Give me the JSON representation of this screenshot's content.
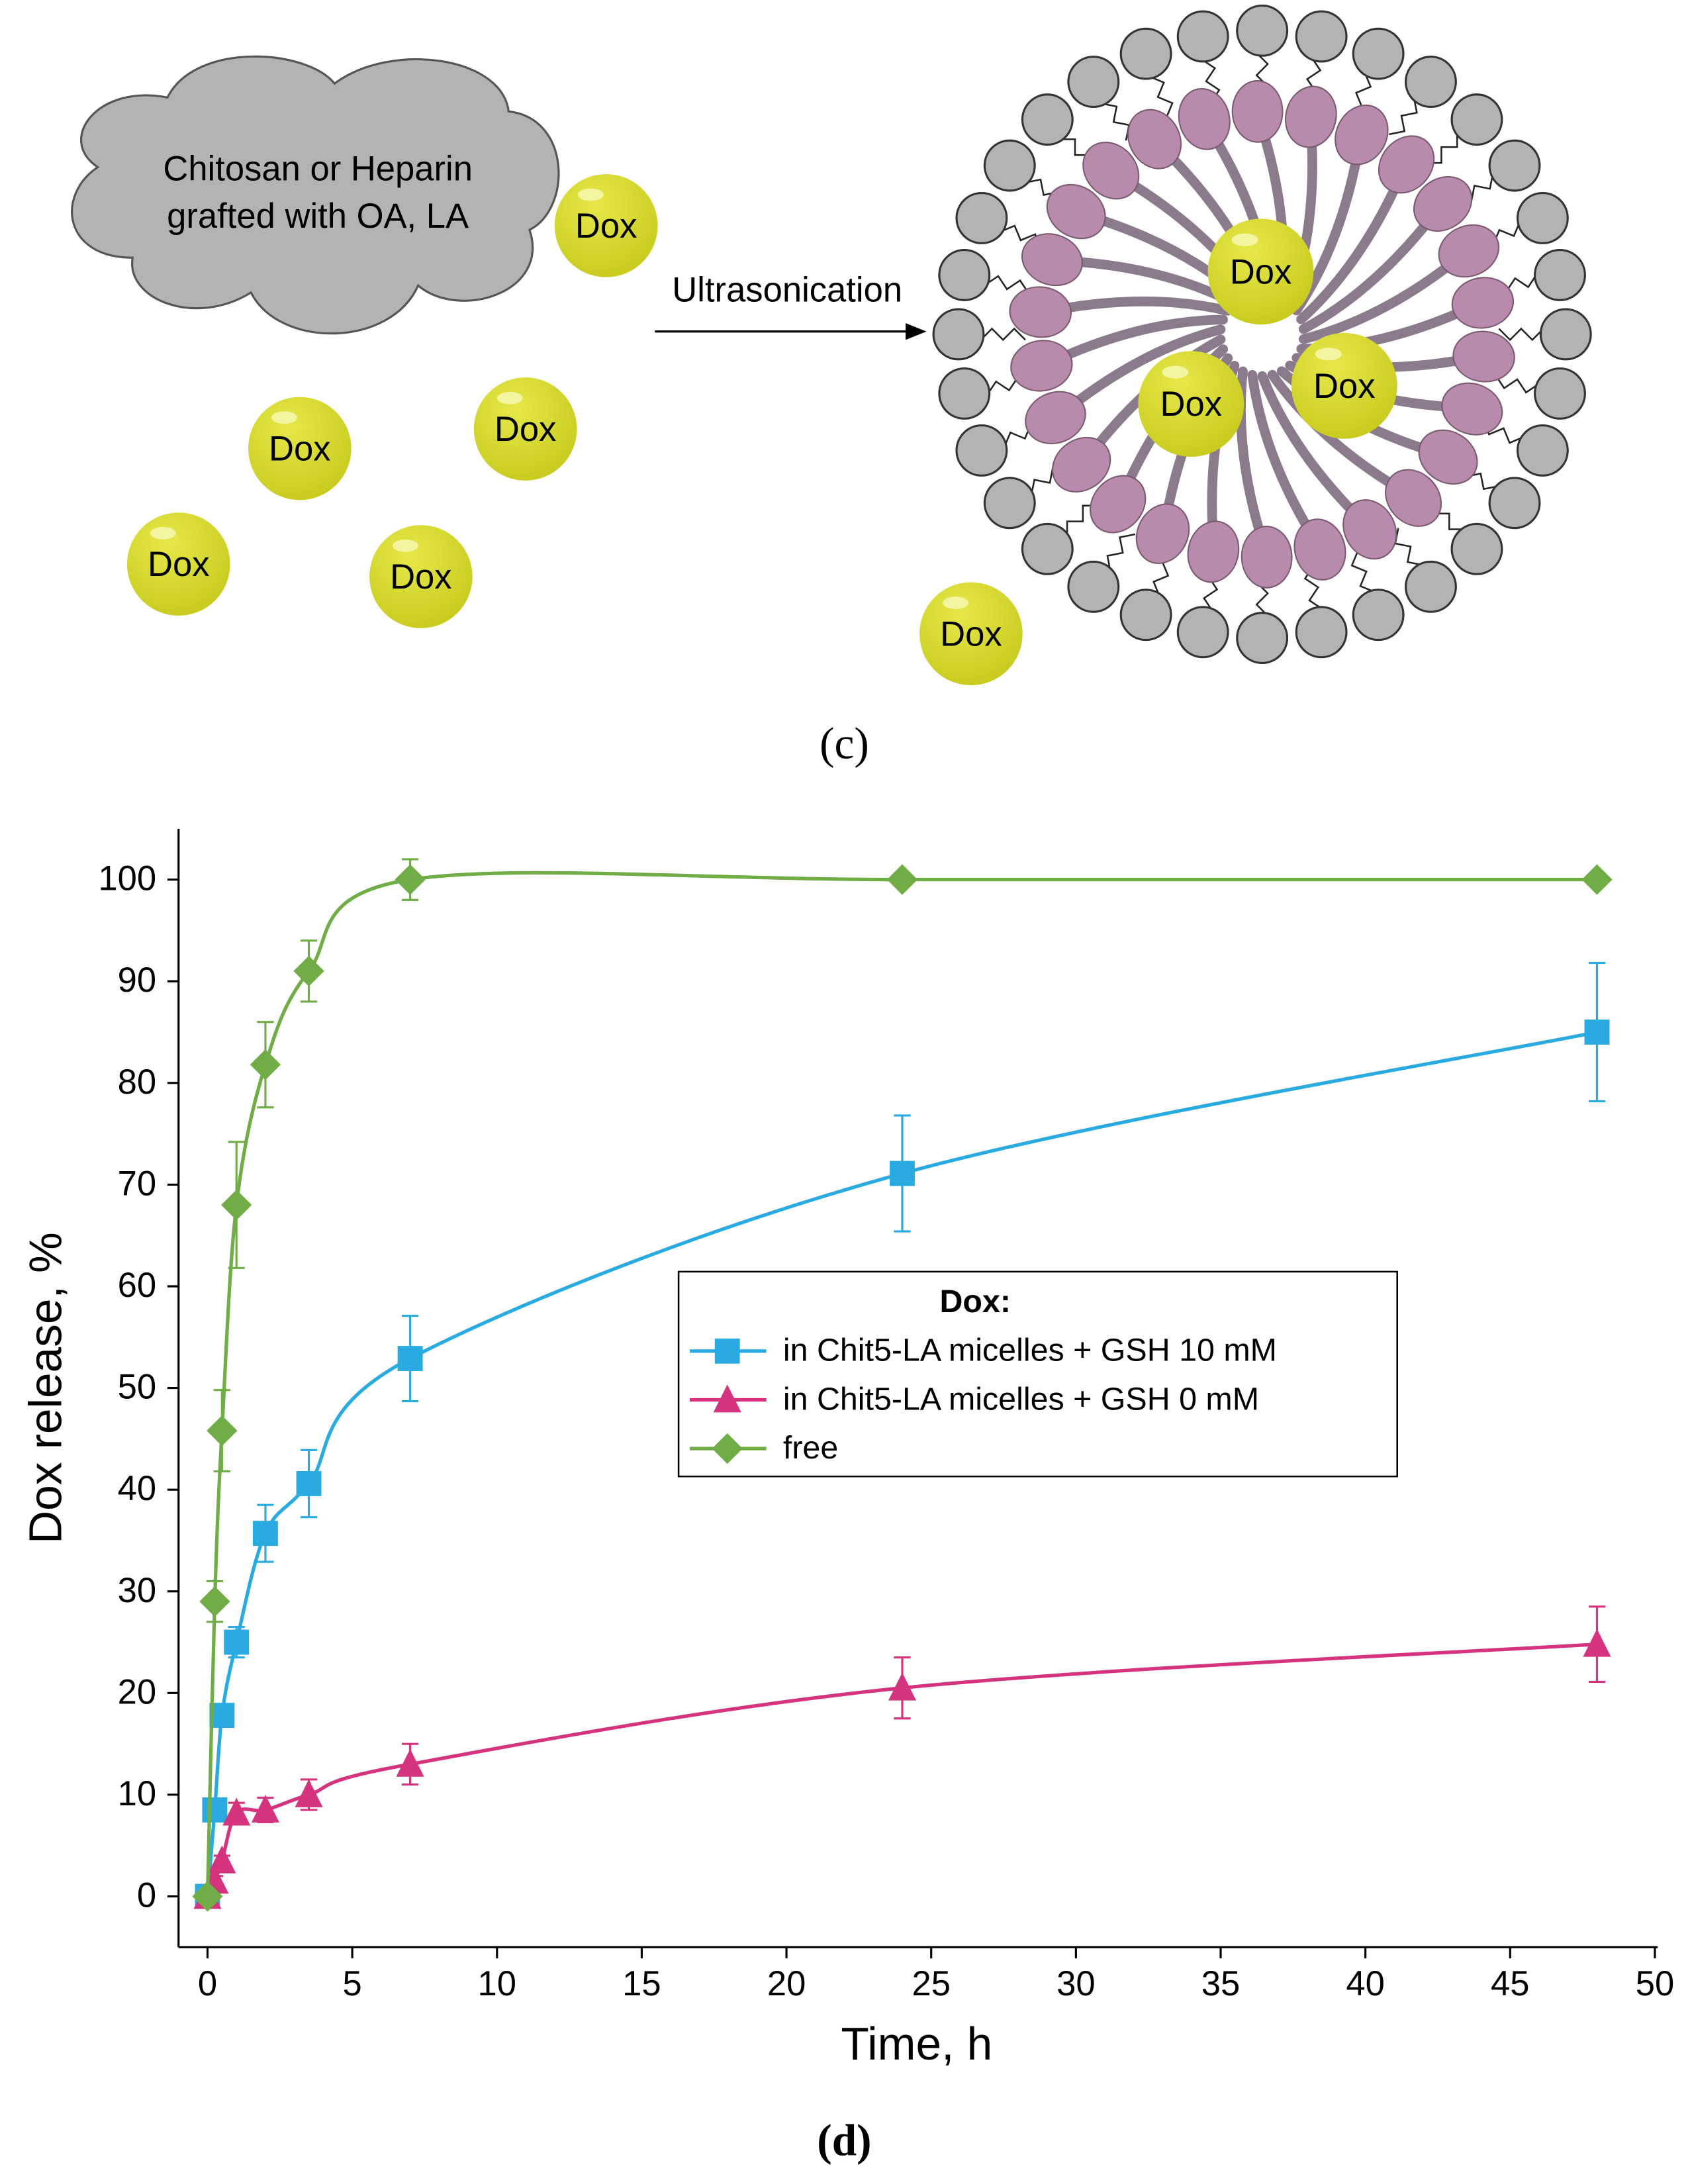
{
  "diagram": {
    "cloud_label_lines": [
      "Chitosan or Heparin",
      "grafted with OA, LA"
    ],
    "drug_label": "Dox",
    "arrow_label": "Ultrasonication",
    "caption": "(c)"
  },
  "chart_data": {
    "type": "line",
    "caption": "(d)",
    "xlabel": "Time, h",
    "ylabel": "Dox release, %",
    "x": [
      0,
      0.25,
      0.5,
      1,
      2,
      3.5,
      7,
      24,
      48
    ],
    "series": [
      {
        "name": "in Chit5-LA micelles + GSH 10 mM",
        "color": "#29abe2",
        "marker": "square",
        "values": [
          0,
          8.5,
          17.8,
          25,
          35.7,
          40.6,
          52.9,
          71.1,
          85
        ],
        "errors": [
          0,
          0.5,
          1,
          1.5,
          2.8,
          3.3,
          4.2,
          5.7,
          6.8
        ]
      },
      {
        "name": "in Chit5-LA micelles + GSH 0 mM",
        "color": "#d6337f",
        "marker": "triangle",
        "values": [
          0,
          1.5,
          3.5,
          8.2,
          8.5,
          10,
          13,
          20.5,
          24.8
        ],
        "errors": [
          0,
          0.5,
          0.5,
          1,
          1.2,
          1.5,
          2,
          3,
          3.7
        ]
      },
      {
        "name": "free",
        "color": "#70ad47",
        "marker": "diamond",
        "values": [
          0,
          29,
          45.8,
          68,
          81.8,
          91,
          100,
          100,
          100
        ],
        "errors": [
          0,
          2,
          4,
          6.2,
          4.2,
          3,
          2,
          0.5,
          0.5
        ]
      }
    ],
    "legend_title": "Dox:",
    "xlim": [
      -1,
      50
    ],
    "ylim": [
      -5,
      105
    ],
    "xticks": [
      0,
      5,
      10,
      15,
      20,
      25,
      30,
      35,
      40,
      45,
      50
    ],
    "yticks": [
      0,
      10,
      20,
      30,
      40,
      50,
      60,
      70,
      80,
      90,
      100
    ]
  }
}
